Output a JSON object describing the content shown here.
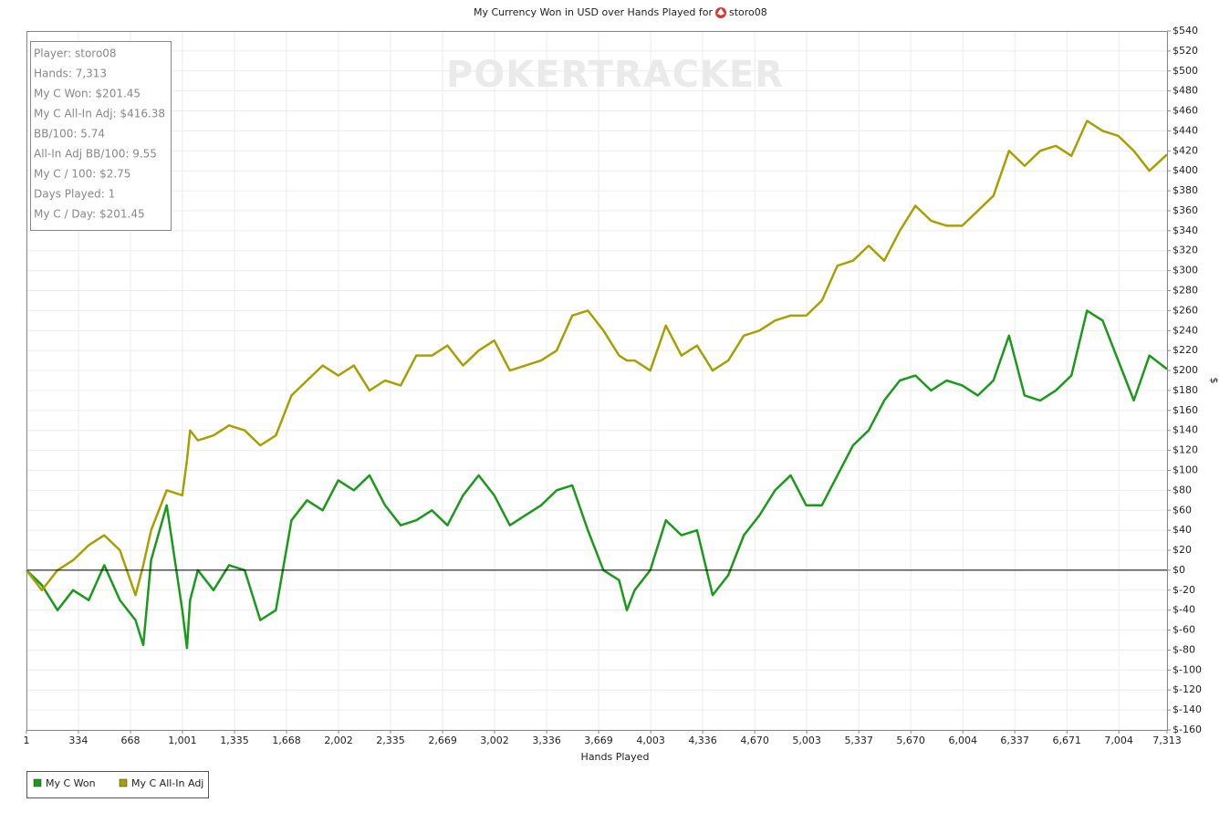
{
  "chart_data": {
    "type": "line",
    "title": "My Currency Won in USD over Hands Played for",
    "title_player": "storo08",
    "watermark": "POKERTRACKER",
    "x_label": "Hands Played",
    "y_label": "$",
    "annotations": [
      "Player: storo08",
      "Hands: 7,313",
      "My C Won: $201.45",
      "My C All-In Adj: $416.38",
      "BB/100: 5.74",
      "All-In Adj BB/100: 9.55",
      "My C / 100: $2.75",
      "Days Played: 1",
      "My C / Day: $201.45"
    ],
    "grid": true,
    "legend": "bottom-left",
    "x": [
      1,
      100,
      200,
      300,
      400,
      500,
      600,
      700,
      750,
      800,
      900,
      1000,
      1030,
      1050,
      1100,
      1200,
      1300,
      1400,
      1500,
      1600,
      1700,
      1800,
      1900,
      2000,
      2100,
      2200,
      2300,
      2400,
      2500,
      2600,
      2700,
      2800,
      2900,
      3000,
      3100,
      3200,
      3300,
      3400,
      3500,
      3600,
      3700,
      3800,
      3850,
      3900,
      4000,
      4100,
      4200,
      4300,
      4400,
      4500,
      4600,
      4700,
      4800,
      4900,
      5000,
      5100,
      5200,
      5300,
      5400,
      5500,
      5600,
      5700,
      5800,
      5900,
      6000,
      6100,
      6200,
      6300,
      6400,
      6500,
      6600,
      6700,
      6800,
      6900,
      7000,
      7100,
      7200,
      7313
    ],
    "series": [
      {
        "name": "My C Won",
        "color": "#1a9a1a",
        "values": [
          0,
          -15,
          -40,
          -20,
          -30,
          5,
          -30,
          -50,
          -75,
          10,
          65,
          -40,
          -78,
          -30,
          0,
          -20,
          5,
          0,
          -50,
          -40,
          50,
          70,
          60,
          90,
          80,
          95,
          65,
          45,
          50,
          60,
          45,
          75,
          95,
          75,
          45,
          55,
          65,
          80,
          85,
          40,
          0,
          -10,
          -40,
          -20,
          0,
          50,
          35,
          40,
          -25,
          -5,
          35,
          55,
          80,
          95,
          65,
          65,
          95,
          125,
          140,
          170,
          190,
          195,
          180,
          190,
          185,
          175,
          190,
          235,
          175,
          170,
          180,
          195,
          260,
          250,
          210,
          170,
          215,
          201.45
        ]
      },
      {
        "name": "My C All-In Adj",
        "color": "#a8a000",
        "values": [
          0,
          -20,
          0,
          10,
          25,
          35,
          20,
          -25,
          5,
          40,
          80,
          75,
          110,
          140,
          130,
          135,
          145,
          140,
          125,
          135,
          175,
          190,
          205,
          195,
          205,
          180,
          190,
          185,
          215,
          215,
          225,
          205,
          220,
          230,
          200,
          205,
          210,
          220,
          255,
          260,
          240,
          215,
          210,
          210,
          200,
          245,
          215,
          225,
          200,
          210,
          235,
          240,
          250,
          255,
          255,
          270,
          305,
          310,
          325,
          310,
          340,
          365,
          350,
          345,
          345,
          360,
          375,
          420,
          405,
          420,
          425,
          415,
          450,
          440,
          435,
          420,
          400,
          416.38
        ]
      }
    ],
    "xlim": [
      1,
      7313
    ],
    "xticks": [
      1,
      334,
      668,
      {
        "value": 1001,
        "label": "1,001"
      },
      {
        "value": 1335,
        "label": "1,335"
      },
      {
        "value": 1668,
        "label": "1,668"
      },
      {
        "value": 2002,
        "label": "2,002"
      },
      {
        "value": 2335,
        "label": "2,335"
      },
      {
        "value": 2669,
        "label": "2,669"
      },
      {
        "value": 3002,
        "label": "3,002"
      },
      {
        "value": 3336,
        "label": "3,336"
      },
      {
        "value": 3669,
        "label": "3,669"
      },
      {
        "value": 4003,
        "label": "4,003"
      },
      {
        "value": 4336,
        "label": "4,336"
      },
      {
        "value": 4670,
        "label": "4,670"
      },
      {
        "value": 5003,
        "label": "5,003"
      },
      {
        "value": 5337,
        "label": "5,337"
      },
      {
        "value": 5670,
        "label": "5,670"
      },
      {
        "value": 6004,
        "label": "6,004"
      },
      {
        "value": 6337,
        "label": "6,337"
      },
      {
        "value": 6671,
        "label": "6,671"
      },
      {
        "value": 7004,
        "label": "7,004"
      },
      {
        "value": 7313,
        "label": "7,313"
      }
    ],
    "ylim": [
      -160,
      540
    ],
    "yticks": [
      {
        "value": -160,
        "label": "$-160"
      },
      {
        "value": -140,
        "label": "$-140"
      },
      {
        "value": -120,
        "label": "$-120"
      },
      {
        "value": -100,
        "label": "$-100"
      },
      {
        "value": -80,
        "label": "$-80"
      },
      {
        "value": -60,
        "label": "$-60"
      },
      {
        "value": -40,
        "label": "$-40"
      },
      {
        "value": -20,
        "label": "$-20"
      },
      {
        "value": 0,
        "label": "$0"
      },
      {
        "value": 20,
        "label": "$20"
      },
      {
        "value": 40,
        "label": "$40"
      },
      {
        "value": 60,
        "label": "$60"
      },
      {
        "value": 80,
        "label": "$80"
      },
      {
        "value": 100,
        "label": "$100"
      },
      {
        "value": 120,
        "label": "$120"
      },
      {
        "value": 140,
        "label": "$140"
      },
      {
        "value": 160,
        "label": "$160"
      },
      {
        "value": 180,
        "label": "$180"
      },
      {
        "value": 200,
        "label": "$200"
      },
      {
        "value": 220,
        "label": "$220"
      },
      {
        "value": 240,
        "label": "$240"
      },
      {
        "value": 260,
        "label": "$260"
      },
      {
        "value": 280,
        "label": "$280"
      },
      {
        "value": 300,
        "label": "$300"
      },
      {
        "value": 320,
        "label": "$320"
      },
      {
        "value": 340,
        "label": "$340"
      },
      {
        "value": 360,
        "label": "$360"
      },
      {
        "value": 380,
        "label": "$380"
      },
      {
        "value": 400,
        "label": "$400"
      },
      {
        "value": 420,
        "label": "$420"
      },
      {
        "value": 440,
        "label": "$440"
      },
      {
        "value": 460,
        "label": "$460"
      },
      {
        "value": 480,
        "label": "$480"
      },
      {
        "value": 500,
        "label": "$500"
      },
      {
        "value": 520,
        "label": "$520"
      },
      {
        "value": 540,
        "label": "$540"
      }
    ]
  }
}
